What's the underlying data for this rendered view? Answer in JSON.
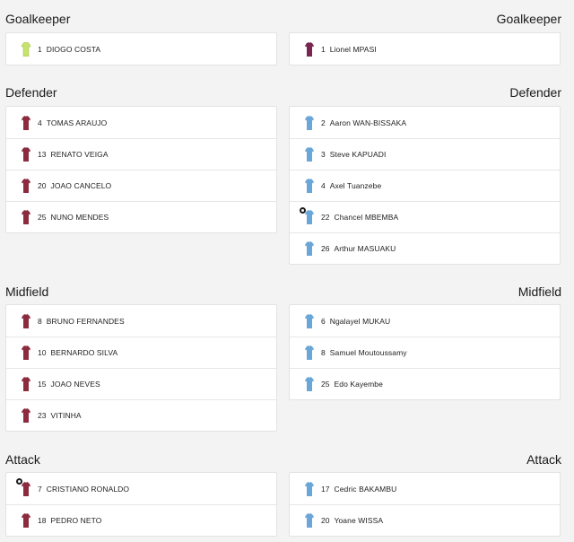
{
  "sections": {
    "goalkeeper": {
      "left_title": "Goalkeeper",
      "right_title": "Goalkeeper"
    },
    "defender": {
      "left_title": "Defender",
      "right_title": "Defender"
    },
    "midfield": {
      "left_title": "Midfield",
      "right_title": "Midfield"
    },
    "attack": {
      "left_title": "Attack",
      "right_title": "Attack"
    }
  },
  "colors": {
    "portugal_kit": "#8c2b3f",
    "portugal_gk_kit": "#c7e36a",
    "dr_congo_kit": "#6aa6d8",
    "dr_congo_gk_kit": "#7a2650",
    "captain_badge": "#1a1a1a"
  },
  "home": {
    "goalkeeper": [
      {
        "number": "1",
        "name": "DIOGO COSTA",
        "kit": "shirt-gk-icon"
      }
    ],
    "defender": [
      {
        "number": "4",
        "name": "TOMAS ARAUJO"
      },
      {
        "number": "13",
        "name": "RENATO VEIGA"
      },
      {
        "number": "20",
        "name": "JOAO CANCELO"
      },
      {
        "number": "25",
        "name": "NUNO MENDES"
      }
    ],
    "midfield": [
      {
        "number": "8",
        "name": "BRUNO FERNANDES"
      },
      {
        "number": "10",
        "name": "BERNARDO SILVA"
      },
      {
        "number": "15",
        "name": "JOAO NEVES"
      },
      {
        "number": "23",
        "name": "VITINHA"
      }
    ],
    "attack": [
      {
        "number": "7",
        "name": "CRISTIANO RONALDO",
        "captain": true
      },
      {
        "number": "18",
        "name": "PEDRO NETO"
      }
    ]
  },
  "away": {
    "goalkeeper": [
      {
        "number": "1",
        "name": "Lionel MPASI",
        "kit": "shirt-gk-icon"
      }
    ],
    "defender": [
      {
        "number": "2",
        "name": "Aaron WAN-BISSAKA"
      },
      {
        "number": "3",
        "name": "Steve KAPUADI"
      },
      {
        "number": "4",
        "name": "Axel Tuanzebe"
      },
      {
        "number": "22",
        "name": "Chancel MBEMBA",
        "captain": true
      },
      {
        "number": "26",
        "name": "Arthur MASUAKU"
      }
    ],
    "midfield": [
      {
        "number": "6",
        "name": "Ngalayel MUKAU"
      },
      {
        "number": "8",
        "name": "Samuel Moutoussamy"
      },
      {
        "number": "25",
        "name": "Edo Kayembe"
      }
    ],
    "attack": [
      {
        "number": "17",
        "name": "Cedric BAKAMBU"
      },
      {
        "number": "20",
        "name": "Yoane WISSA"
      }
    ]
  }
}
